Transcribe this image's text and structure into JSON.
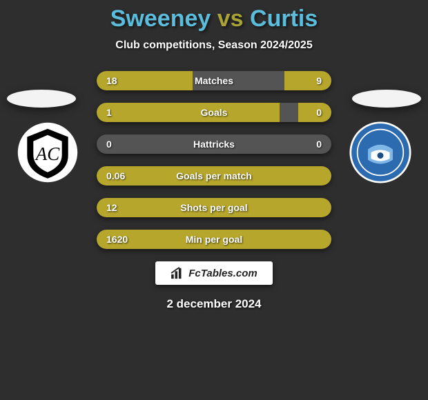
{
  "background_color": "#2e2e2e",
  "title": {
    "left": "Sweeney",
    "vs": "vs",
    "right": "Curtis",
    "left_color": "#5bbcdc",
    "right_color": "#5bbcdc",
    "vs_color": "#a9a335"
  },
  "subtitle": "Club competitions, Season 2024/2025",
  "left_team": {
    "shadow_color": "#f3f3f3",
    "crest_bg": "#ffffff",
    "crest_shape_fill": "#000000"
  },
  "right_team": {
    "shadow_color": "#f3f3f3",
    "crest_bg": "#2d6bb1",
    "crest_ring": "#ffffff"
  },
  "bar_color_left": "#b6a62c",
  "bar_color_right": "#b6a62c",
  "bar_track_color": "rgba(130,130,130,0.45)",
  "stats": [
    {
      "label": "Matches",
      "leftVal": "18",
      "rightVal": "9",
      "leftPct": 41,
      "rightPct": 20
    },
    {
      "label": "Goals",
      "leftVal": "1",
      "rightVal": "0",
      "leftPct": 78,
      "rightPct": 14
    },
    {
      "label": "Hattricks",
      "leftVal": "0",
      "rightVal": "0",
      "leftPct": 0,
      "rightPct": 0
    },
    {
      "label": "Goals per match",
      "leftVal": "0.06",
      "rightVal": "",
      "leftPct": 100,
      "rightPct": 0
    },
    {
      "label": "Shots per goal",
      "leftVal": "12",
      "rightVal": "",
      "leftPct": 100,
      "rightPct": 0
    },
    {
      "label": "Min per goal",
      "leftVal": "1620",
      "rightVal": "",
      "leftPct": 100,
      "rightPct": 0
    }
  ],
  "badge": {
    "text": "FcTables.com",
    "icon_color": "#222222",
    "bg": "#ffffff"
  },
  "date": "2 december 2024"
}
